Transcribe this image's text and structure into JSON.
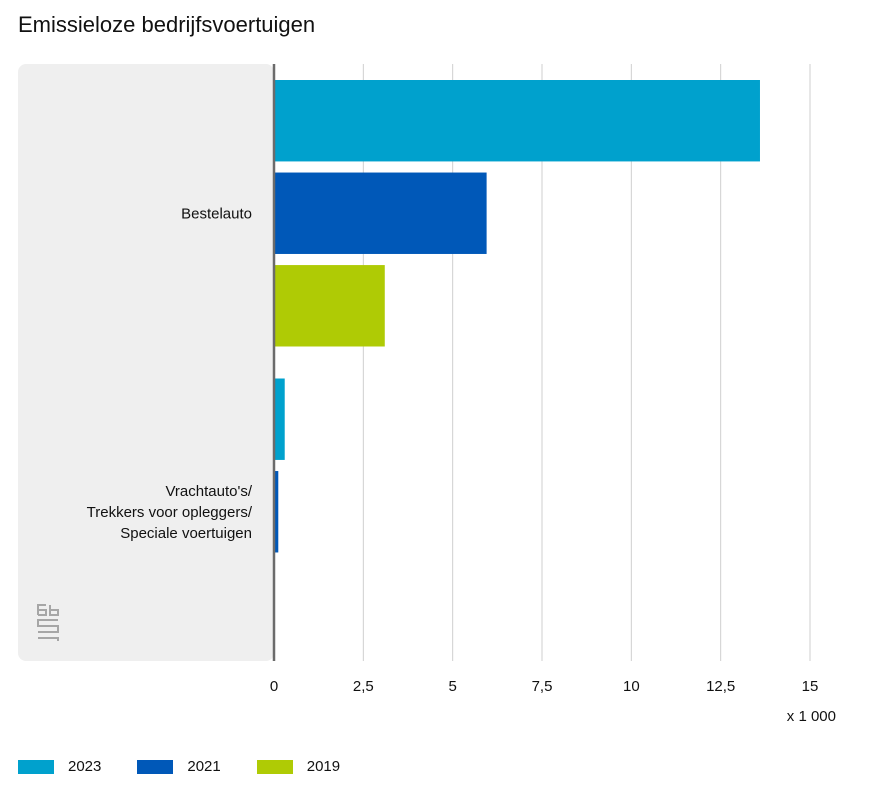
{
  "header": {
    "title": "Emissieloze bedrijfsvoertuigen"
  },
  "chart_data": {
    "type": "bar",
    "orientation": "horizontal",
    "title": "Emissieloze bedrijfsvoertuigen",
    "categories": [
      "Bestelauto",
      "Vrachtauto's/\nTrekkers voor opleggers/\nSpeciale voertuigen"
    ],
    "series": [
      {
        "name": "2023",
        "color": "#00a1cd",
        "values": [
          13.6,
          0.3
        ]
      },
      {
        "name": "2021",
        "color": "#0058b8",
        "values": [
          5.95,
          0.12
        ]
      },
      {
        "name": "2019",
        "color": "#afcb05",
        "values": [
          3.1,
          0.02
        ]
      }
    ],
    "x_ticks": [
      "0",
      "2,5",
      "5",
      "7,5",
      "10",
      "12,5",
      "15"
    ],
    "x_tick_values": [
      0,
      2.5,
      5,
      7.5,
      10,
      12.5,
      15
    ],
    "xlim": [
      0,
      15
    ],
    "unit_label": "x 1 000",
    "grid": true,
    "legend_position": "bottom-left"
  },
  "branding": {
    "logo": "cbs-logo"
  }
}
